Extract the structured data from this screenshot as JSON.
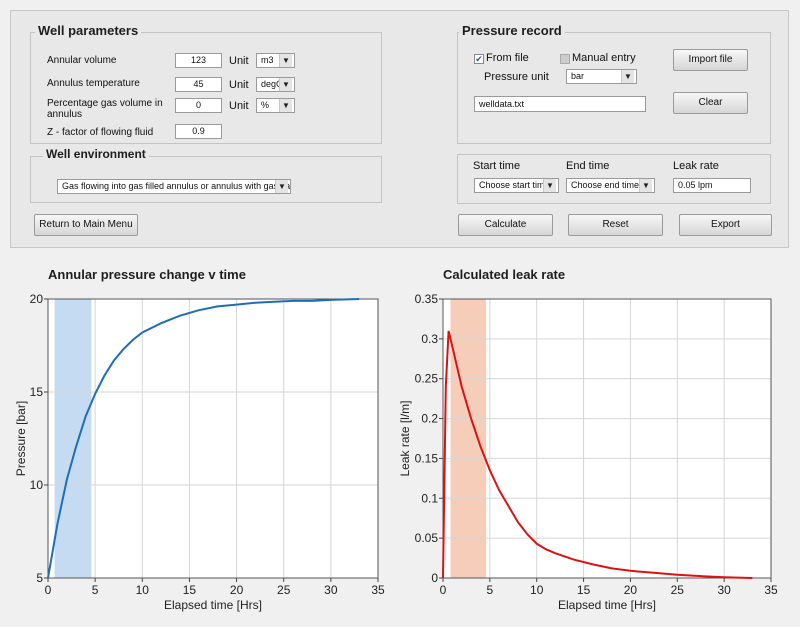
{
  "well_parameters": {
    "title": "Well parameters",
    "annular_volume": {
      "label": "Annular volume",
      "value": "123",
      "unit_label": "Unit",
      "unit": "m3"
    },
    "annulus_temperature": {
      "label": "Annulus temperature",
      "value": "45",
      "unit_label": "Unit",
      "unit": "degC"
    },
    "gas_volume": {
      "label_line1": "Percentage gas volume in",
      "label_line2": "annulus",
      "value": "0",
      "unit_label": "Unit",
      "unit": "%"
    },
    "z_factor": {
      "label": "Z - factor of flowing fluid",
      "value": "0.9"
    }
  },
  "well_environment": {
    "title": "Well environment",
    "selected": "Gas flowing into gas filled annulus or annulus with gas cap"
  },
  "return_button": "Return to Main Menu",
  "pressure_record": {
    "title": "Pressure record",
    "from_file_label": "From file",
    "from_file_checked": true,
    "manual_entry_label": "Manual entry",
    "manual_entry_checked": false,
    "pressure_unit_label": "Pressure unit",
    "pressure_unit": "bar",
    "import_button": "Import file",
    "file_name": "welldata.txt",
    "clear_button": "Clear"
  },
  "time_controls": {
    "start_time_label": "Start time",
    "start_time_value": "Choose start time",
    "end_time_label": "End time",
    "end_time_value": "Choose end time",
    "leak_rate_label": "Leak rate",
    "leak_rate_value": "0.05 lpm"
  },
  "actions": {
    "calculate": "Calculate",
    "reset": "Reset",
    "export": "Export"
  },
  "chart_data": [
    {
      "type": "line",
      "title": "Annular pressure change v time",
      "xlabel": "Elapsed time [Hrs]",
      "ylabel": "Pressure [bar]",
      "xlim": [
        0,
        35
      ],
      "ylim": [
        5,
        20
      ],
      "xticks": [
        "0",
        "5",
        "10",
        "15",
        "20",
        "25",
        "30",
        "35"
      ],
      "yticks": [
        "5",
        "10",
        "15",
        "20"
      ],
      "grid": true,
      "line_color": "#1f6db5",
      "highlight_color": "#c5dbf2",
      "highlight_range": [
        0.7,
        4.6
      ],
      "x": [
        0,
        1,
        2,
        3,
        4,
        5,
        6,
        7,
        8,
        9,
        10,
        12,
        14,
        16,
        18,
        20,
        22,
        24,
        26,
        28,
        30,
        33
      ],
      "y": [
        5.0,
        7.9,
        10.3,
        12.1,
        13.7,
        14.9,
        15.9,
        16.7,
        17.3,
        17.8,
        18.2,
        18.7,
        19.1,
        19.4,
        19.6,
        19.7,
        19.8,
        19.85,
        19.9,
        19.9,
        19.95,
        20.0
      ]
    },
    {
      "type": "line",
      "title": "Calculated leak rate",
      "xlabel": "Elapsed time [Hrs]",
      "ylabel": "Leak rate [l/m]",
      "xlim": [
        0,
        35
      ],
      "ylim": [
        0,
        0.35
      ],
      "xticks": [
        "0",
        "5",
        "10",
        "15",
        "20",
        "25",
        "30",
        "35"
      ],
      "yticks": [
        "0",
        "0.05",
        "0.1",
        "0.15",
        "0.2",
        "0.25",
        "0.3",
        "0.35"
      ],
      "grid": true,
      "line_color": "#dd1111",
      "highlight_color": "#f6cdb8",
      "highlight_range": [
        0.8,
        4.6
      ],
      "x": [
        0,
        0.3,
        0.6,
        1,
        2,
        3,
        4,
        5,
        6,
        7,
        8,
        9,
        10,
        11,
        12,
        14,
        16,
        18,
        20,
        22,
        25,
        28,
        30,
        33
      ],
      "y": [
        0,
        0.24,
        0.31,
        0.29,
        0.24,
        0.2,
        0.165,
        0.135,
        0.11,
        0.09,
        0.07,
        0.055,
        0.043,
        0.036,
        0.031,
        0.023,
        0.017,
        0.012,
        0.009,
        0.007,
        0.004,
        0.002,
        0.001,
        0.0
      ]
    }
  ]
}
